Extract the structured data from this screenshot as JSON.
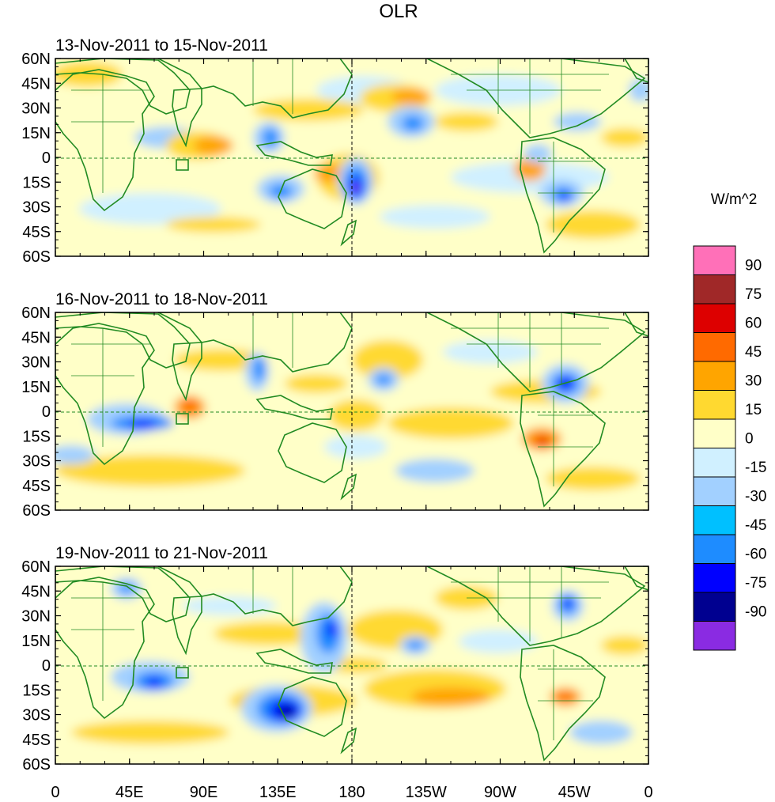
{
  "title": "OLR",
  "units": "W/m^2",
  "panels": [
    {
      "label": "13-Nov-2011 to 15-Nov-2011"
    },
    {
      "label": "16-Nov-2011 to 18-Nov-2011"
    },
    {
      "label": "19-Nov-2011 to 21-Nov-2011"
    }
  ],
  "lat_ticks": [
    "60N",
    "45N",
    "30N",
    "15N",
    "0",
    "15S",
    "30S",
    "45S",
    "60S"
  ],
  "lon_ticks": [
    "0",
    "45E",
    "90E",
    "135E",
    "180",
    "135W",
    "90W",
    "45W",
    "0"
  ],
  "colorbar": {
    "labels": [
      "90",
      "75",
      "60",
      "45",
      "30",
      "15",
      "0",
      "-15",
      "-30",
      "-45",
      "-60",
      "-75",
      "-90"
    ],
    "colors": [
      "#ff70b8",
      "#a02828",
      "#dd0000",
      "#ff6a00",
      "#ffa500",
      "#ffd930",
      "#ffffc8",
      "#d0f0ff",
      "#a2d0ff",
      "#00c0ff",
      "#1e8cff",
      "#0000ff",
      "#000090",
      "#8a2be2"
    ]
  },
  "colors": {
    "land_outline": "#228b22",
    "equator_line": "#228b22",
    "dateline": "#000000"
  }
}
